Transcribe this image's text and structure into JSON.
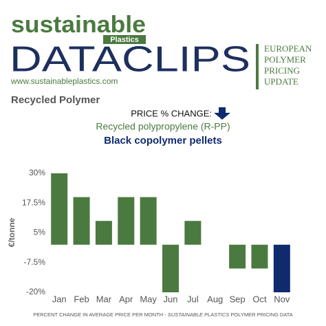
{
  "header": {
    "brand": "sustainable",
    "brand_sub": "Plastics",
    "masthead": "DATACLIPS",
    "url": "www.sustainableplastics.com",
    "side_lines": [
      "EUROPEAN",
      "POLYMER",
      "PRICING",
      "UPDATE"
    ],
    "section": "Recycled Polymer",
    "measure": "PRICE % CHANGE:",
    "material": "Recycled polypropylene (R-PP)",
    "product": "Black copolymer pellets"
  },
  "footer": [
    "PERCENT CHANGE IN AVERAGE PRICE PER MONTH - ",
    "SUSTAINABLE PLASTICS",
    " POLYMER PRICING DATA"
  ],
  "chart_data": {
    "type": "bar",
    "y_label": "€/tonne",
    "categories": [
      "Jan",
      "Feb",
      "Mar",
      "Apr",
      "May",
      "Jun",
      "Jul",
      "Aug",
      "Sep",
      "Oct",
      "Nov"
    ],
    "values": [
      30,
      20,
      10,
      20,
      20,
      -20,
      10,
      0,
      -10,
      -10,
      -20
    ],
    "colors": [
      "#4b7a40",
      "#4b7a40",
      "#4b7a40",
      "#4b7a40",
      "#4b7a40",
      "#4b7a40",
      "#4b7a40",
      "#4b7a40",
      "#4b7a40",
      "#4b7a40",
      "#0f2b6e"
    ],
    "ylim": [
      -20,
      30
    ],
    "yticks": [
      {
        "value": -20,
        "label": "-20%"
      },
      {
        "value": -7.5,
        "label": "-7.5%"
      },
      {
        "value": 5,
        "label": "5%"
      },
      {
        "value": 17.5,
        "label": "17.5%"
      },
      {
        "value": 30,
        "label": "30%"
      }
    ],
    "grid": false
  }
}
